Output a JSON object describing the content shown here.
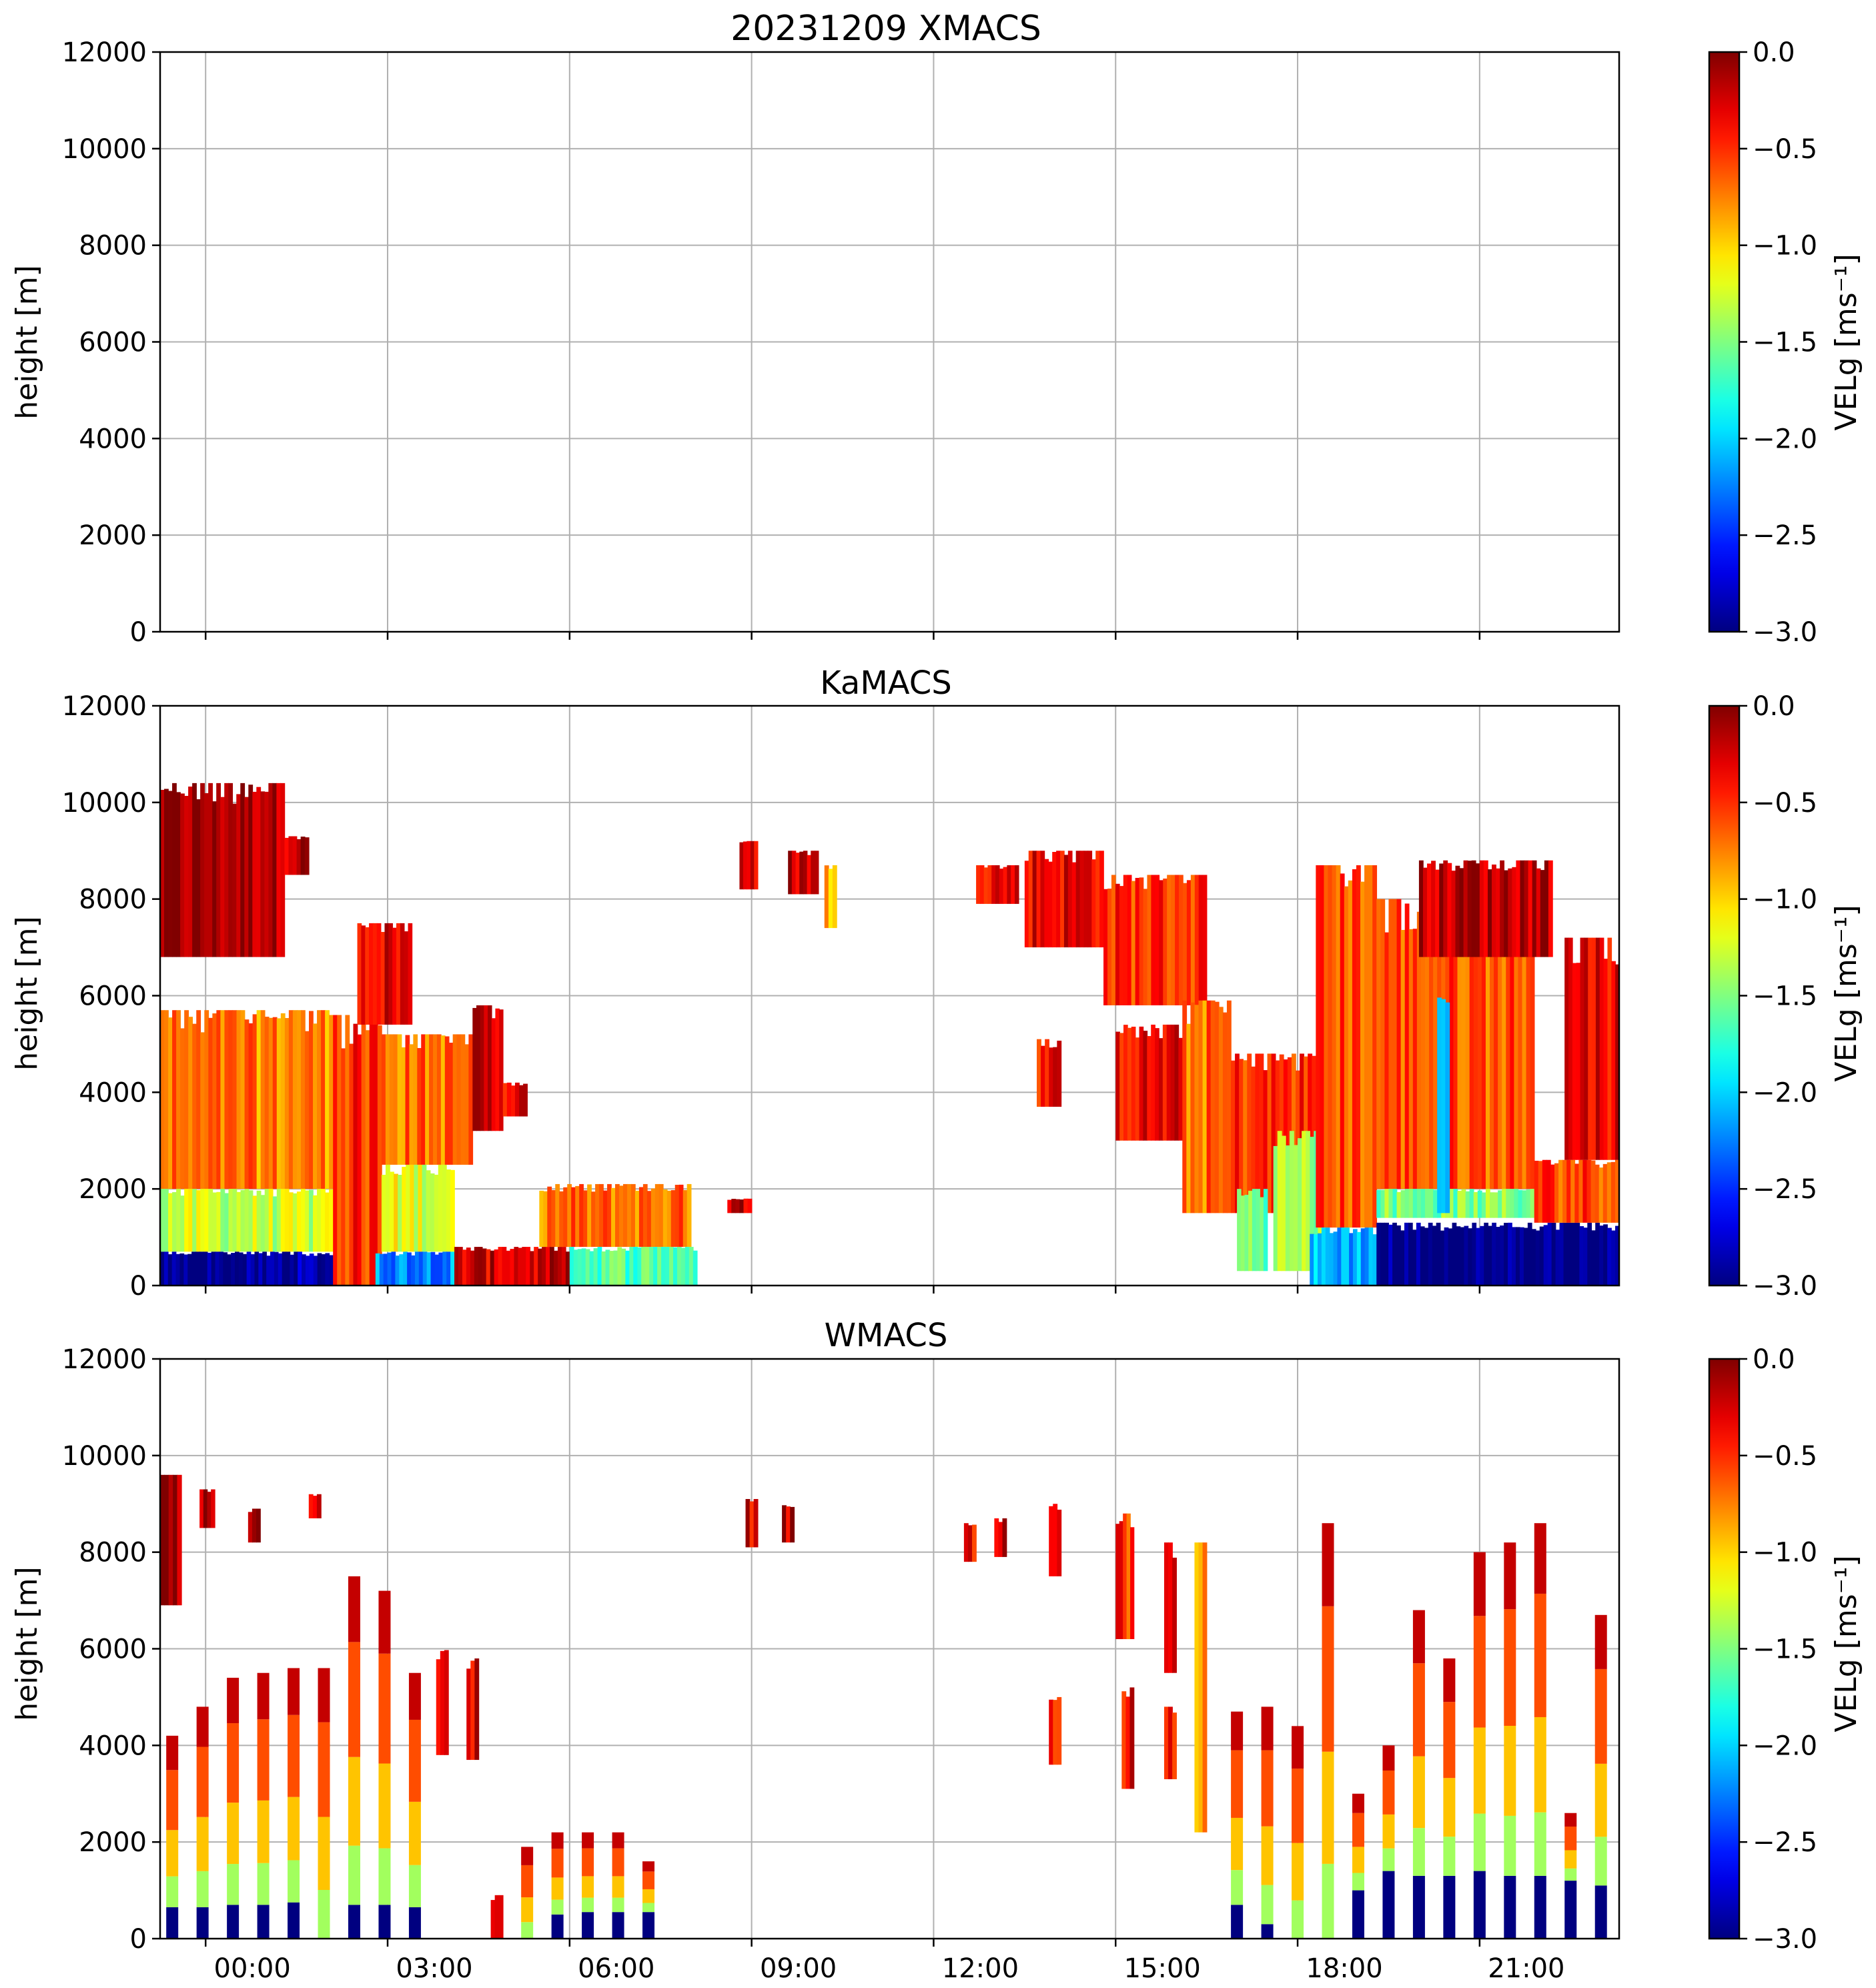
{
  "chart_data": [
    {
      "type": "heatmap",
      "title": "20231209 XMACS",
      "ylabel": "height [m]",
      "ylim": [
        0,
        12000
      ],
      "yticks": [
        "0",
        "2000",
        "4000",
        "6000",
        "8000",
        "10000",
        "12000"
      ],
      "xlim_hours": [
        -1.25,
        22.8
      ],
      "xtick_labels": [],
      "grid": true,
      "colorbar": {
        "label": "VELg [ms⁻¹]",
        "vmin": -3.0,
        "vmax": 0.0,
        "ticks": [
          "0.0",
          "−0.5",
          "−1.0",
          "−1.5",
          "−2.0",
          "−2.5",
          "−3.0"
        ],
        "colormap": "jet"
      },
      "regions": []
    },
    {
      "type": "heatmap",
      "title": "KaMACS",
      "ylabel": "height [m]",
      "ylim": [
        0,
        12000
      ],
      "yticks": [
        "0",
        "2000",
        "4000",
        "6000",
        "8000",
        "10000",
        "12000"
      ],
      "xlim_hours": [
        -1.25,
        22.8
      ],
      "xtick_labels": [],
      "grid": true,
      "colorbar": {
        "label": "VELg [ms⁻¹]",
        "vmin": -3.0,
        "vmax": 0.0,
        "ticks": [
          "0.0",
          "−0.5",
          "−1.0",
          "−1.5",
          "−2.0",
          "−2.5",
          "−3.0"
        ],
        "colormap": "jet"
      },
      "regions": [
        {
          "t0": -1.25,
          "t1": 0.8,
          "h0": 6800,
          "h1": 10400,
          "v": -0.1
        },
        {
          "t0": 0.8,
          "t1": 1.2,
          "h0": 8500,
          "h1": 9300,
          "v": -0.15
        },
        {
          "t0": -1.25,
          "t1": 1.6,
          "h0": 2000,
          "h1": 5700,
          "v": -0.75
        },
        {
          "t0": -1.25,
          "t1": 1.6,
          "h0": 700,
          "h1": 2000,
          "v": -1.3
        },
        {
          "t0": -1.25,
          "t1": 0.5,
          "h0": 0,
          "h1": 700,
          "v": -3.0
        },
        {
          "t0": 0.5,
          "t1": 1.6,
          "h0": 0,
          "h1": 700,
          "v": -2.9
        },
        {
          "t0": 1.6,
          "t1": 2.4,
          "h0": 0,
          "h1": 5600,
          "v": -0.5
        },
        {
          "t0": 2.0,
          "t1": 2.9,
          "h0": 5400,
          "h1": 7500,
          "v": -0.3
        },
        {
          "t0": 2.4,
          "t1": 3.9,
          "h0": 2500,
          "h1": 5200,
          "v": -0.7
        },
        {
          "t0": 2.4,
          "t1": 3.6,
          "h0": 700,
          "h1": 2500,
          "v": -1.2
        },
        {
          "t0": 2.3,
          "t1": 3.6,
          "h0": 0,
          "h1": 700,
          "v": -2.2
        },
        {
          "t0": 3.9,
          "t1": 4.4,
          "h0": 3200,
          "h1": 5800,
          "v": -0.25
        },
        {
          "t0": 4.4,
          "t1": 4.8,
          "h0": 3500,
          "h1": 4200,
          "v": -0.3
        },
        {
          "t0": 3.6,
          "t1": 5.5,
          "h0": 0,
          "h1": 800,
          "v": -0.25
        },
        {
          "t0": 5.0,
          "t1": 7.5,
          "h0": 800,
          "h1": 2100,
          "v": -0.7
        },
        {
          "t0": 5.5,
          "t1": 7.6,
          "h0": 0,
          "h1": 800,
          "v": -1.6
        },
        {
          "t0": 8.3,
          "t1": 8.6,
          "h0": 8200,
          "h1": 9200,
          "v": -0.35
        },
        {
          "t0": 9.1,
          "t1": 9.6,
          "h0": 8100,
          "h1": 9000,
          "v": -0.2
        },
        {
          "t0": 9.7,
          "t1": 9.9,
          "h0": 7400,
          "h1": 8700,
          "v": -0.9
        },
        {
          "t0": 8.1,
          "t1": 8.5,
          "h0": 1500,
          "h1": 1800,
          "v": -0.2
        },
        {
          "t0": 12.2,
          "t1": 12.9,
          "h0": 7900,
          "h1": 8700,
          "v": -0.3
        },
        {
          "t0": 13.0,
          "t1": 14.3,
          "h0": 7000,
          "h1": 9000,
          "v": -0.3
        },
        {
          "t0": 14.3,
          "t1": 16.0,
          "h0": 5800,
          "h1": 8500,
          "v": -0.5
        },
        {
          "t0": 13.2,
          "t1": 13.6,
          "h0": 3700,
          "h1": 5100,
          "v": -0.4
        },
        {
          "t0": 14.5,
          "t1": 15.6,
          "h0": 3000,
          "h1": 5400,
          "v": -0.35
        },
        {
          "t0": 15.6,
          "t1": 16.4,
          "h0": 1500,
          "h1": 5900,
          "v": -0.7
        },
        {
          "t0": 16.4,
          "t1": 17.8,
          "h0": 1500,
          "h1": 4800,
          "v": -0.5
        },
        {
          "t0": 16.5,
          "t1": 17.0,
          "h0": 300,
          "h1": 2000,
          "v": -1.5
        },
        {
          "t0": 17.1,
          "t1": 17.9,
          "h0": 300,
          "h1": 3200,
          "v": -1.4
        },
        {
          "t0": 17.8,
          "t1": 18.8,
          "h0": 1200,
          "h1": 8700,
          "v": -0.6
        },
        {
          "t0": 17.7,
          "t1": 18.8,
          "h0": 0,
          "h1": 1200,
          "v": -2.1
        },
        {
          "t0": 18.8,
          "t1": 21.4,
          "h0": 2000,
          "h1": 8000,
          "v": -0.6
        },
        {
          "t0": 19.5,
          "t1": 21.7,
          "h0": 6800,
          "h1": 8800,
          "v": -0.15
        },
        {
          "t0": 18.8,
          "t1": 21.4,
          "h0": 1400,
          "h1": 2000,
          "v": -1.5
        },
        {
          "t0": 18.8,
          "t1": 22.8,
          "h0": 0,
          "h1": 1300,
          "v": -3.0
        },
        {
          "t0": 19.8,
          "t1": 20.0,
          "h0": 1500,
          "h1": 6000,
          "v": -2.0
        },
        {
          "t0": 21.4,
          "t1": 22.8,
          "h0": 1300,
          "h1": 2600,
          "v": -0.55
        },
        {
          "t0": 21.9,
          "t1": 22.8,
          "h0": 2600,
          "h1": 7200,
          "v": -0.3
        }
      ]
    },
    {
      "type": "heatmap",
      "title": "WMACS",
      "ylabel": "height [m]",
      "ylim": [
        0,
        12000
      ],
      "yticks": [
        "0",
        "2000",
        "4000",
        "6000",
        "8000",
        "10000",
        "12000"
      ],
      "xlim_hours": [
        -1.25,
        22.8
      ],
      "xtick_labels": [
        "00:00",
        "03:00",
        "06:00",
        "09:00",
        "12:00",
        "15:00",
        "18:00",
        "21:00"
      ],
      "xtick_hours": [
        -0.5,
        2.5,
        5.5,
        8.5,
        11.5,
        14.5,
        17.5,
        20.5
      ],
      "grid": true,
      "colorbar": {
        "label": "VELg [ms⁻¹]",
        "vmin": -3.0,
        "vmax": 0.0,
        "ticks": [
          "0.0",
          "−0.5",
          "−1.0",
          "−1.5",
          "−2.0",
          "−2.5",
          "−3.0"
        ],
        "colormap": "jet"
      },
      "columns": [
        {
          "t": -1.05,
          "top": 4200,
          "base": 650
        },
        {
          "t": -0.55,
          "top": 4800,
          "base": 650
        },
        {
          "t": -0.05,
          "top": 5400,
          "base": 700
        },
        {
          "t": 0.45,
          "top": 5500,
          "base": 700
        },
        {
          "t": 0.95,
          "top": 5600,
          "base": 750
        },
        {
          "t": 1.45,
          "top": 5600,
          "base": 0
        },
        {
          "t": 1.95,
          "top": 7500,
          "base": 700
        },
        {
          "t": 2.45,
          "top": 7200,
          "base": 700
        },
        {
          "t": 2.95,
          "top": 5500,
          "base": 650
        },
        {
          "t": 4.8,
          "top": 1900,
          "base": 0
        },
        {
          "t": 5.3,
          "top": 2200,
          "base": 500
        },
        {
          "t": 5.8,
          "top": 2200,
          "base": 550
        },
        {
          "t": 6.3,
          "top": 2200,
          "base": 550
        },
        {
          "t": 6.8,
          "top": 1600,
          "base": 550
        },
        {
          "t": 16.5,
          "top": 4700,
          "base": 700
        },
        {
          "t": 17.0,
          "top": 4800,
          "base": 300
        },
        {
          "t": 17.5,
          "top": 4400,
          "base": 0
        },
        {
          "t": 18.0,
          "top": 8600,
          "base": 0
        },
        {
          "t": 18.5,
          "top": 3000,
          "base": 1000
        },
        {
          "t": 19.0,
          "top": 4000,
          "base": 1400
        },
        {
          "t": 19.5,
          "top": 6800,
          "base": 1300
        },
        {
          "t": 20.0,
          "top": 5800,
          "base": 1300
        },
        {
          "t": 20.5,
          "top": 8000,
          "base": 1400
        },
        {
          "t": 21.0,
          "top": 8200,
          "base": 1300
        },
        {
          "t": 21.5,
          "top": 8600,
          "base": 1300
        },
        {
          "t": 22.0,
          "top": 2600,
          "base": 1200
        },
        {
          "t": 22.5,
          "top": 6700,
          "base": 1100
        }
      ],
      "regions": [
        {
          "t0": -1.25,
          "t1": -0.9,
          "h0": 6900,
          "h1": 9600,
          "v": -0.1
        },
        {
          "t0": -0.6,
          "t1": -0.35,
          "h0": 8500,
          "h1": 9300,
          "v": -0.1
        },
        {
          "t0": 0.2,
          "t1": 0.4,
          "h0": 8200,
          "h1": 8900,
          "v": -0.15
        },
        {
          "t0": 1.2,
          "t1": 1.4,
          "h0": 8700,
          "h1": 9200,
          "v": -0.3
        },
        {
          "t0": 3.3,
          "t1": 3.5,
          "h0": 3800,
          "h1": 6000,
          "v": -0.2
        },
        {
          "t0": 3.8,
          "t1": 4.0,
          "h0": 3700,
          "h1": 5800,
          "v": -0.25
        },
        {
          "t0": 4.2,
          "t1": 4.4,
          "h0": 0,
          "h1": 900,
          "v": -0.1
        },
        {
          "t0": 8.4,
          "t1": 8.6,
          "h0": 8100,
          "h1": 9100,
          "v": -0.3
        },
        {
          "t0": 9.0,
          "t1": 9.2,
          "h0": 8200,
          "h1": 9000,
          "v": -0.2
        },
        {
          "t0": 12.0,
          "t1": 12.2,
          "h0": 7800,
          "h1": 8600,
          "v": -0.4
        },
        {
          "t0": 12.5,
          "t1": 12.7,
          "h0": 7900,
          "h1": 8700,
          "v": -0.3
        },
        {
          "t0": 13.4,
          "t1": 13.6,
          "h0": 7500,
          "h1": 9000,
          "v": -0.35
        },
        {
          "t0": 13.4,
          "t1": 13.6,
          "h0": 3600,
          "h1": 5000,
          "v": -0.4
        },
        {
          "t0": 14.5,
          "t1": 14.8,
          "h0": 6200,
          "h1": 8800,
          "v": -0.5
        },
        {
          "t0": 15.3,
          "t1": 15.5,
          "h0": 5500,
          "h1": 8200,
          "v": -0.4
        },
        {
          "t0": 15.8,
          "t1": 16.0,
          "h0": 2200,
          "h1": 8200,
          "v": -0.8
        },
        {
          "t0": 15.3,
          "t1": 15.5,
          "h0": 3300,
          "h1": 4800,
          "v": -0.4
        },
        {
          "t0": 14.6,
          "t1": 14.8,
          "h0": 3100,
          "h1": 5200,
          "v": -0.35
        }
      ]
    }
  ]
}
